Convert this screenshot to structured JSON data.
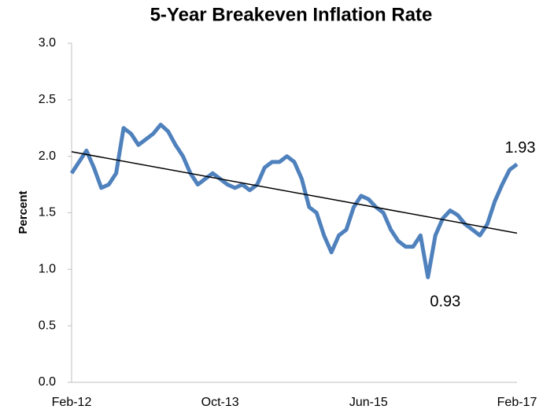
{
  "chart_data": {
    "type": "line",
    "title": "5-Year Breakeven Inflation Rate",
    "y_label": "Percent",
    "categories": [
      "Feb-12",
      null,
      null,
      null,
      null,
      null,
      null,
      null,
      null,
      null,
      null,
      null,
      null,
      null,
      null,
      null,
      null,
      null,
      null,
      null,
      "Oct-13",
      null,
      null,
      null,
      null,
      null,
      null,
      null,
      null,
      null,
      null,
      null,
      null,
      null,
      null,
      null,
      null,
      null,
      null,
      null,
      "Jun-15",
      null,
      null,
      null,
      null,
      null,
      null,
      null,
      null,
      null,
      null,
      null,
      null,
      null,
      null,
      null,
      null,
      null,
      null,
      null,
      "Feb-17"
    ],
    "series": [
      {
        "color": "#4f81bd",
        "values": [
          1.85,
          1.95,
          2.05,
          1.9,
          1.72,
          1.75,
          1.85,
          2.25,
          2.2,
          2.1,
          2.15,
          2.2,
          2.28,
          2.22,
          2.1,
          2.0,
          1.85,
          1.75,
          1.8,
          1.85,
          1.8,
          1.75,
          1.72,
          1.75,
          1.7,
          1.75,
          1.9,
          1.95,
          1.95,
          2.0,
          1.95,
          1.8,
          1.55,
          1.5,
          1.3,
          1.15,
          1.3,
          1.35,
          1.55,
          1.65,
          1.62,
          1.55,
          1.5,
          1.35,
          1.25,
          1.2,
          1.2,
          1.3,
          0.93,
          1.3,
          1.45,
          1.52,
          1.48,
          1.4,
          1.35,
          1.3,
          1.4,
          1.6,
          1.75,
          1.88,
          1.93
        ],
        "value_labels": [
          null,
          null,
          null,
          null,
          null,
          null,
          null,
          null,
          null,
          null,
          null,
          null,
          null,
          null,
          null,
          null,
          null,
          null,
          null,
          null,
          null,
          null,
          null,
          null,
          null,
          null,
          null,
          null,
          null,
          null,
          null,
          null,
          null,
          null,
          null,
          null,
          null,
          null,
          null,
          null,
          null,
          null,
          null,
          null,
          null,
          null,
          null,
          null,
          "0.93",
          null,
          null,
          null,
          null,
          null,
          null,
          null,
          null,
          null,
          null,
          null,
          "1.93"
        ]
      }
    ],
    "trendline": {
      "start": 2.04,
      "end": 1.32,
      "color": "#000000"
    },
    "ylim": [
      0,
      3
    ],
    "yticks": [
      {
        "value": 0,
        "label": "0.0"
      },
      0.5,
      {
        "value": 1,
        "label": "1.0"
      },
      1.5,
      {
        "value": 2,
        "label": "2.0"
      },
      2.5,
      {
        "value": 3,
        "label": "3.0"
      }
    ],
    "grid": false
  }
}
